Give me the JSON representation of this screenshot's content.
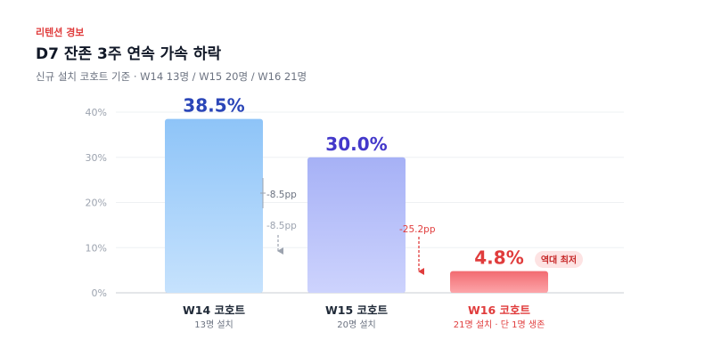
{
  "header": {
    "alert_tag": "리텐션 경보",
    "title": "D7 잔존 3주 연속 가속 하락",
    "subtitle": "신규 설치 코호트 기준 · W14 13명 / W15 20명 / W16 21명"
  },
  "colors": {
    "accent_red": "#e03c3c",
    "w14_value": "#2b46b8",
    "w15_value": "#4338ca",
    "w16_value": "#e03c3c",
    "grid": "#eef0f3",
    "axis": "#c9ccd3"
  },
  "chart_data": {
    "type": "bar",
    "categories": [
      "W14 코호트",
      "W15 코호트",
      "W16 코호트"
    ],
    "category_subs": [
      "13명 설치",
      "20명 설치",
      "21명 설치 · 단 1명 생존"
    ],
    "values": [
      38.5,
      30.0,
      4.8
    ],
    "value_labels": [
      "38.5%",
      "30.0%",
      "4.8%"
    ],
    "ylim": [
      0,
      40
    ],
    "yticks": [
      0,
      10,
      20,
      30,
      40
    ],
    "ytick_labels": [
      "0%",
      "10%",
      "20%",
      "30%",
      "40%"
    ],
    "grid": true,
    "deltas": [
      {
        "from": 0,
        "to": 1,
        "labels": [
          "-8.5pp",
          "-8.5pp"
        ]
      },
      {
        "from": 1,
        "to": 2,
        "labels": [
          "-25.2pp"
        ]
      }
    ],
    "badge": {
      "index": 2,
      "text": "역대 최저"
    }
  }
}
